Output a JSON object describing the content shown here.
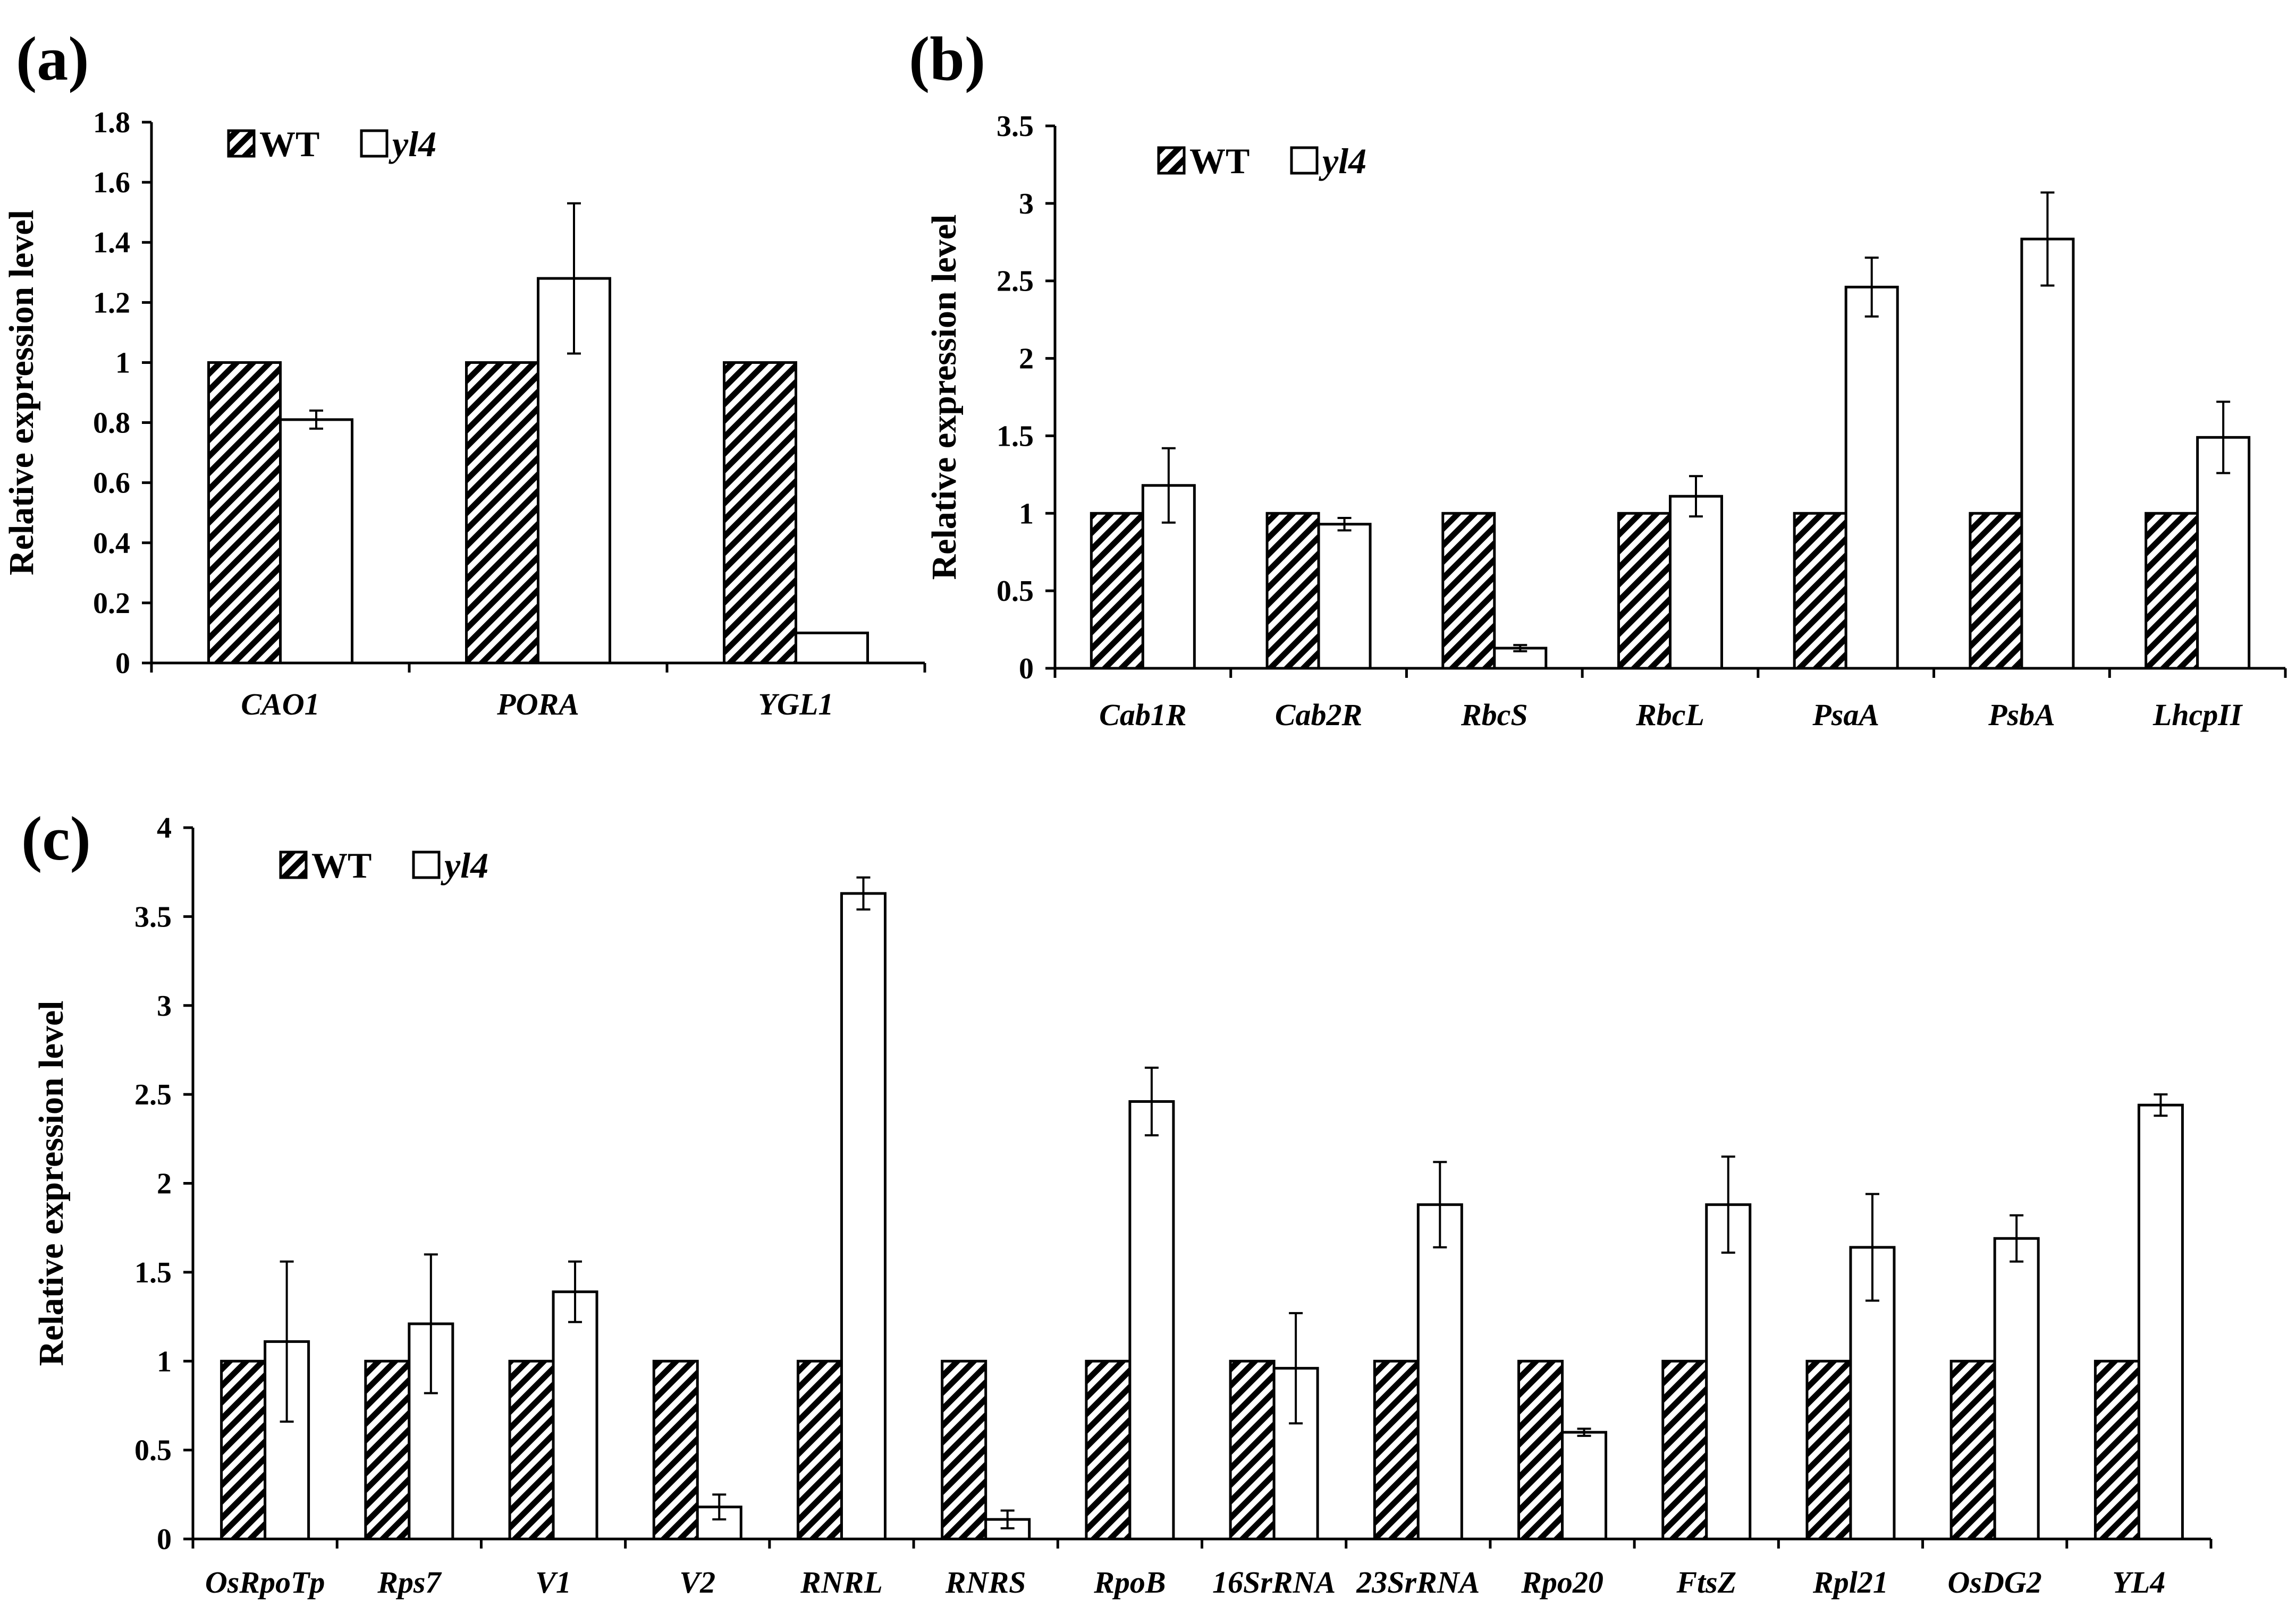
{
  "chart_data": [
    {
      "type": "bar",
      "panel": "(a)",
      "ylabel": "Relative expression  level",
      "ylim": [
        0,
        1.8
      ],
      "yticks": [
        "0",
        "0.2",
        "0.4",
        "0.6",
        "0.8",
        "1",
        "1.2",
        "1.4",
        "1.6",
        "1.8"
      ],
      "categories": [
        "CAO1",
        "PORA",
        "YGL1"
      ],
      "legend": [
        "WT",
        "yl4"
      ],
      "legend_position": "top-left",
      "series": [
        {
          "name": "WT",
          "values": [
            1,
            1,
            1
          ],
          "errors": [
            0,
            0,
            0
          ]
        },
        {
          "name": "yl4",
          "values": [
            0.81,
            1.28,
            0.1
          ],
          "errors": [
            0.03,
            0.25,
            0
          ]
        }
      ]
    },
    {
      "type": "bar",
      "panel": "(b)",
      "ylabel": "Relative expression  level",
      "ylim": [
        0,
        3.5
      ],
      "yticks": [
        "0",
        "0.5",
        "1",
        "1.5",
        "2",
        "2.5",
        "3",
        "3.5"
      ],
      "categories": [
        "Cab1R",
        "Cab2R",
        "RbcS",
        "RbcL",
        "PsaA",
        "PsbA",
        "LhcpII"
      ],
      "legend": [
        "WT",
        "yl4"
      ],
      "legend_position": "top-left",
      "series": [
        {
          "name": "WT",
          "values": [
            1,
            1,
            1,
            1,
            1,
            1,
            1
          ],
          "errors": [
            0,
            0,
            0,
            0,
            0,
            0,
            0
          ]
        },
        {
          "name": "yl4",
          "values": [
            1.18,
            0.93,
            0.13,
            1.11,
            2.46,
            2.77,
            1.49
          ],
          "errors": [
            0.24,
            0.04,
            0.02,
            0.13,
            0.19,
            0.3,
            0.23
          ]
        }
      ]
    },
    {
      "type": "bar",
      "panel": "(c)",
      "ylabel": "Relative expression  level",
      "ylim": [
        0,
        4
      ],
      "yticks": [
        "0",
        "0.5",
        "1",
        "1.5",
        "2",
        "2.5",
        "3",
        "3.5",
        "4"
      ],
      "categories": [
        "OsRpoTp",
        "Rps7",
        "V1",
        "V2",
        "RNRL",
        "RNRS",
        "RpoB",
        "16SrRNA",
        "23SrRNA",
        "Rpo20",
        "FtsZ",
        "Rpl21",
        "OsDG2",
        "YL4"
      ],
      "legend": [
        "WT",
        "yl4"
      ],
      "legend_position": "top-left",
      "series": [
        {
          "name": "WT",
          "values": [
            1,
            1,
            1,
            1,
            1,
            1,
            1,
            1,
            1,
            1,
            1,
            1,
            1,
            1
          ],
          "errors": [
            0,
            0,
            0,
            0,
            0,
            0,
            0,
            0,
            0,
            0,
            0,
            0,
            0,
            0
          ]
        },
        {
          "name": "yl4",
          "values": [
            1.11,
            1.21,
            1.39,
            0.18,
            3.63,
            0.11,
            2.46,
            0.96,
            1.88,
            0.6,
            1.88,
            1.64,
            1.69,
            2.44
          ],
          "errors": [
            0.45,
            0.39,
            0.17,
            0.07,
            0.09,
            0.05,
            0.19,
            0.31,
            0.24,
            0.02,
            0.27,
            0.3,
            0.13,
            0.06
          ]
        }
      ]
    }
  ]
}
